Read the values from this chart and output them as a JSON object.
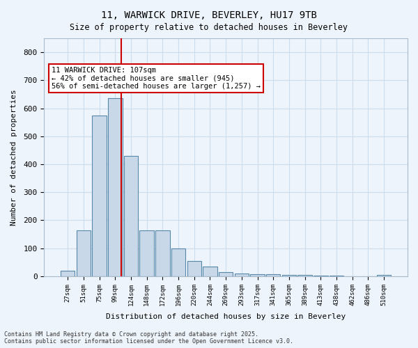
{
  "title_line1": "11, WARWICK DRIVE, BEVERLEY, HU17 9TB",
  "title_line2": "Size of property relative to detached houses in Beverley",
  "xlabel": "Distribution of detached houses by size in Beverley",
  "ylabel": "Number of detached properties",
  "categories": [
    "27sqm",
    "51sqm",
    "75sqm",
    "99sqm",
    "124sqm",
    "148sqm",
    "172sqm",
    "196sqm",
    "220sqm",
    "244sqm",
    "269sqm",
    "293sqm",
    "317sqm",
    "341sqm",
    "365sqm",
    "389sqm",
    "413sqm",
    "438sqm",
    "462sqm",
    "486sqm",
    "510sqm"
  ],
  "values": [
    20,
    165,
    575,
    635,
    430,
    165,
    165,
    100,
    55,
    35,
    15,
    10,
    8,
    7,
    5,
    4,
    3,
    2,
    1,
    1,
    5
  ],
  "bar_color": "#c8d8e8",
  "bar_edge_color": "#5588aa",
  "grid_color": "#ccddee",
  "background_color": "#eef4fb",
  "red_line_x": 3,
  "annotation_text": "11 WARWICK DRIVE: 107sqm\n← 42% of detached houses are smaller (945)\n56% of semi-detached houses are larger (1,257) →",
  "annotation_box_color": "#ffffff",
  "annotation_border_color": "#cc0000",
  "footer_line1": "Contains HM Land Registry data © Crown copyright and database right 2025.",
  "footer_line2": "Contains public sector information licensed under the Open Government Licence v3.0.",
  "ylim": [
    0,
    850
  ],
  "yticks": [
    0,
    100,
    200,
    300,
    400,
    500,
    600,
    700,
    800
  ]
}
